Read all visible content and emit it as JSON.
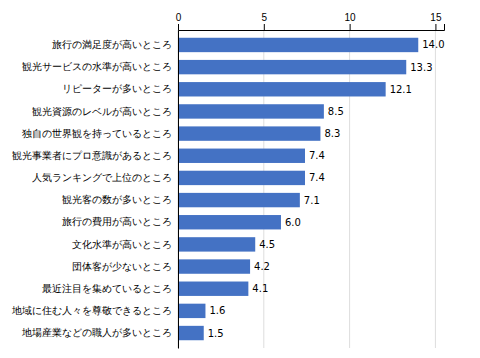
{
  "chart_data": {
    "type": "bar",
    "orientation": "horizontal",
    "categories": [
      "地場産業などの職人が多いところ",
      "地域に住む人々を尊敬できるところ",
      "最近注目を集めているところ",
      "団体客が少ないところ",
      "文化水準が高いところ",
      "旅行の費用が高いところ",
      "観光客の数が多いところ",
      "人気ランキングで上位のところ",
      "観光事業者にプロ意識があるところ",
      "独自の世界観を持っているところ",
      "観光資源のレベルが高いところ",
      "リピーターが多いところ",
      "観光サービスの水準が高いところ",
      "旅行の満足度が高いところ"
    ],
    "values": [
      1.5,
      1.6,
      4.1,
      4.2,
      4.5,
      6.0,
      7.1,
      7.4,
      7.4,
      8.3,
      8.5,
      12.1,
      13.3,
      14.0
    ],
    "value_labels": [
      "1.5",
      "1.6",
      "4.1",
      "4.2",
      "4.5",
      "6.0",
      "7.1",
      "7.4",
      "7.4",
      "8.3",
      "8.5",
      "12.1",
      "13.3",
      "14.0"
    ],
    "color": "#4472C4",
    "xlim": [
      0,
      15.5
    ],
    "xticks": [
      0,
      5,
      10,
      15
    ],
    "grid": true,
    "data_labels": true
  }
}
